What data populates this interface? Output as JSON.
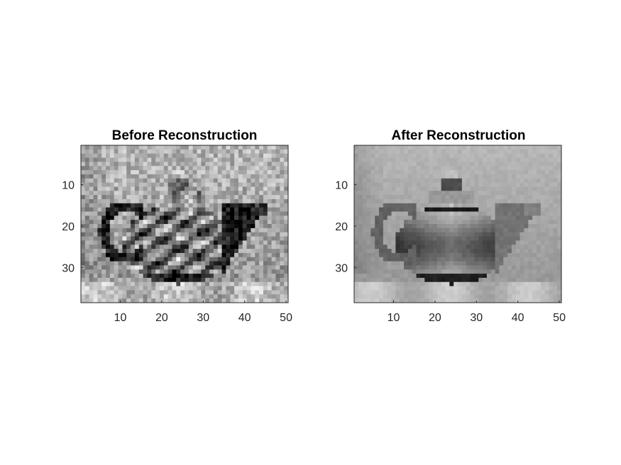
{
  "chart_data": [
    {
      "type": "heatmap",
      "title": "Before Reconstruction",
      "colormap": "gray",
      "image_size": [
        38,
        50
      ],
      "xlim": [
        0.5,
        50.5
      ],
      "ylim": [
        0.5,
        38.5
      ],
      "y_direction": "reverse",
      "xticks": [
        10,
        20,
        30,
        40,
        50
      ],
      "yticks": [
        10,
        20,
        30
      ],
      "xtick_labels": [
        "10",
        "20",
        "30",
        "40",
        "50"
      ],
      "ytick_labels": [
        "10",
        "20",
        "30"
      ],
      "content": "teapot-detailed",
      "noise": 0.16
    },
    {
      "type": "heatmap",
      "title": "After Reconstruction",
      "colormap": "gray",
      "image_size": [
        38,
        50
      ],
      "xlim": [
        0.5,
        50.5
      ],
      "ylim": [
        0.5,
        38.5
      ],
      "y_direction": "reverse",
      "xticks": [
        10,
        20,
        30,
        40,
        50
      ],
      "yticks": [
        10,
        20,
        30
      ],
      "xtick_labels": [
        "10",
        "20",
        "30",
        "40",
        "50"
      ],
      "ytick_labels": [
        "10",
        "20",
        "30"
      ],
      "content": "teapot-smooth",
      "noise": 0.03
    }
  ]
}
